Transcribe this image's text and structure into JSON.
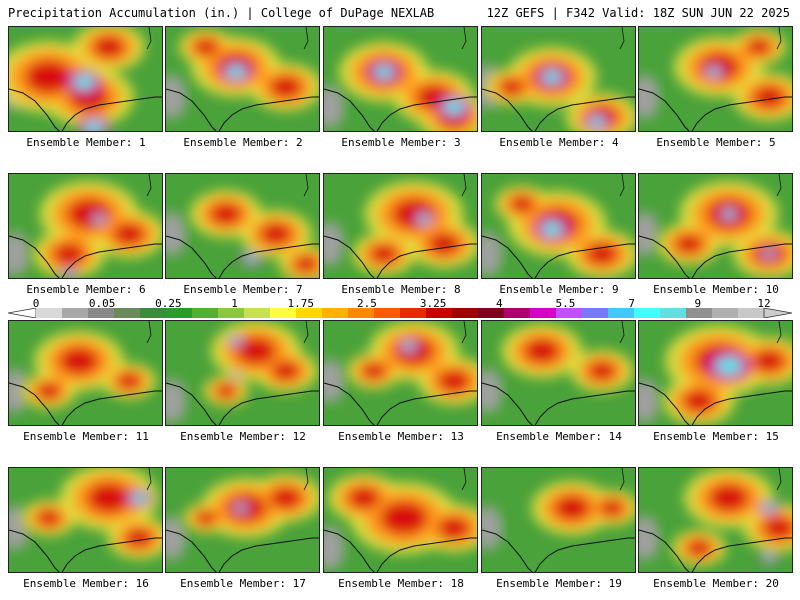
{
  "header": {
    "left": "Precipitation Accumulation (in.) | College of DuPage NEXLAB",
    "right": "12Z GEFS | F342 Valid: 18Z SUN JUN 22 2025"
  },
  "panels": [
    {
      "label": "Ensemble Member: 1",
      "hot": [
        [
          40,
          50,
          60
        ],
        [
          80,
          70,
          50
        ],
        [
          100,
          20,
          40
        ]
      ],
      "cyan": [
        [
          75,
          55,
          20
        ],
        [
          85,
          100,
          18
        ]
      ]
    },
    {
      "label": "Ensemble Member: 2",
      "hot": [
        [
          70,
          40,
          50
        ],
        [
          120,
          60,
          40
        ],
        [
          40,
          20,
          30
        ]
      ],
      "cyan": [
        [
          70,
          45,
          18
        ]
      ]
    },
    {
      "label": "Ensemble Member: 3",
      "hot": [
        [
          60,
          45,
          50
        ],
        [
          110,
          70,
          45
        ],
        [
          130,
          90,
          40
        ]
      ],
      "cyan": [
        [
          60,
          45,
          18
        ],
        [
          130,
          80,
          20
        ]
      ]
    },
    {
      "label": "Ensemble Member: 4",
      "hot": [
        [
          70,
          50,
          50
        ],
        [
          120,
          90,
          40
        ],
        [
          30,
          60,
          30
        ]
      ],
      "cyan": [
        [
          70,
          50,
          18
        ],
        [
          115,
          95,
          15
        ]
      ]
    },
    {
      "label": "Ensemble Member: 5",
      "hot": [
        [
          80,
          40,
          50
        ],
        [
          130,
          70,
          40
        ],
        [
          120,
          20,
          30
        ]
      ],
      "cyan": [
        [
          75,
          45,
          12
        ]
      ]
    },
    {
      "label": "Ensemble Member: 6",
      "hot": [
        [
          80,
          40,
          55
        ],
        [
          120,
          60,
          40
        ],
        [
          60,
          80,
          40
        ]
      ],
      "cyan": [
        [
          90,
          45,
          10
        ],
        [
          60,
          100,
          10
        ]
      ]
    },
    {
      "label": "Ensemble Member: 7",
      "hot": [
        [
          60,
          40,
          40
        ],
        [
          110,
          60,
          40
        ],
        [
          140,
          90,
          30
        ]
      ],
      "cyan": [
        [
          85,
          85,
          12
        ]
      ]
    },
    {
      "label": "Ensemble Member: 8",
      "hot": [
        [
          90,
          40,
          55
        ],
        [
          120,
          70,
          40
        ],
        [
          60,
          80,
          35
        ]
      ],
      "cyan": [
        [
          100,
          45,
          12
        ]
      ]
    },
    {
      "label": "Ensemble Member: 9",
      "hot": [
        [
          75,
          50,
          55
        ],
        [
          120,
          80,
          40
        ],
        [
          40,
          30,
          30
        ]
      ],
      "cyan": [
        [
          70,
          55,
          20
        ]
      ]
    },
    {
      "label": "Ensemble Member: 10",
      "hot": [
        [
          90,
          40,
          55
        ],
        [
          130,
          80,
          40
        ],
        [
          50,
          70,
          35
        ]
      ],
      "cyan": [
        [
          90,
          40,
          12
        ],
        [
          130,
          80,
          10
        ]
      ]
    },
    {
      "label": "Ensemble Member: 11",
      "hot": [
        [
          70,
          40,
          50
        ],
        [
          40,
          70,
          30
        ],
        [
          120,
          60,
          30
        ]
      ],
      "cyan": []
    },
    {
      "label": "Ensemble Member: 12",
      "hot": [
        [
          90,
          30,
          50
        ],
        [
          120,
          50,
          35
        ],
        [
          60,
          70,
          25
        ]
      ],
      "cyan": [
        [
          70,
          20,
          10
        ],
        [
          70,
          55,
          6
        ]
      ]
    },
    {
      "label": "Ensemble Member: 13",
      "hot": [
        [
          90,
          30,
          50
        ],
        [
          130,
          60,
          40
        ],
        [
          50,
          50,
          30
        ]
      ],
      "cyan": [
        [
          85,
          25,
          12
        ]
      ]
    },
    {
      "label": "Ensemble Member: 14",
      "hot": [
        [
          60,
          30,
          45
        ],
        [
          120,
          50,
          35
        ]
      ],
      "cyan": []
    },
    {
      "label": "Ensemble Member: 15",
      "hot": [
        [
          80,
          40,
          60
        ],
        [
          130,
          40,
          40
        ],
        [
          60,
          80,
          40
        ]
      ],
      "cyan": [
        [
          90,
          45,
          25
        ]
      ]
    },
    {
      "label": "Ensemble Member: 16",
      "hot": [
        [
          100,
          30,
          55
        ],
        [
          130,
          70,
          35
        ],
        [
          40,
          50,
          30
        ]
      ],
      "cyan": [
        [
          130,
          30,
          15
        ]
      ]
    },
    {
      "label": "Ensemble Member: 17",
      "hot": [
        [
          80,
          40,
          50
        ],
        [
          120,
          30,
          40
        ],
        [
          40,
          50,
          25
        ]
      ],
      "cyan": [
        [
          75,
          40,
          10
        ]
      ]
    },
    {
      "label": "Ensemble Member: 18",
      "hot": [
        [
          80,
          50,
          60
        ],
        [
          40,
          30,
          40
        ],
        [
          130,
          60,
          40
        ]
      ],
      "cyan": []
    },
    {
      "label": "Ensemble Member: 19",
      "hot": [
        [
          90,
          40,
          45
        ],
        [
          130,
          40,
          30
        ]
      ],
      "cyan": []
    },
    {
      "label": "Ensemble Member: 20",
      "hot": [
        [
          90,
          30,
          50
        ],
        [
          140,
          60,
          40
        ],
        [
          60,
          80,
          30
        ]
      ],
      "cyan": [
        [
          130,
          40,
          12
        ],
        [
          130,
          90,
          10
        ]
      ]
    }
  ],
  "colorbar": {
    "ticks": [
      "0",
      "0.05",
      "0.25",
      "1",
      "1.75",
      "2.5",
      "3.25",
      "4",
      "5.5",
      "7",
      "9",
      "12"
    ],
    "colors": [
      "#d8d8d8",
      "#a8a8a8",
      "#888888",
      "#6a8a5a",
      "#3c8a3c",
      "#2e9a2e",
      "#55b030",
      "#8cc83c",
      "#c6e050",
      "#ffff40",
      "#ffd800",
      "#ffb000",
      "#ff8800",
      "#ff5a00",
      "#e82a00",
      "#c80000",
      "#a00000",
      "#800020",
      "#b00070",
      "#d800c8",
      "#c050ff",
      "#7878ff",
      "#40c8ff",
      "#40ffff",
      "#60e0e0",
      "#909090",
      "#b0b0b0",
      "#c8c8c8"
    ]
  },
  "colors": {
    "base_green": "#4aa23a",
    "dry_gray": "#a0a0a0",
    "yellow": "#e8e040",
    "orange": "#ff9a1a",
    "red": "#d81010",
    "magenta": "#c81aa0",
    "cyan": "#40e8f0",
    "border": "#111111"
  }
}
